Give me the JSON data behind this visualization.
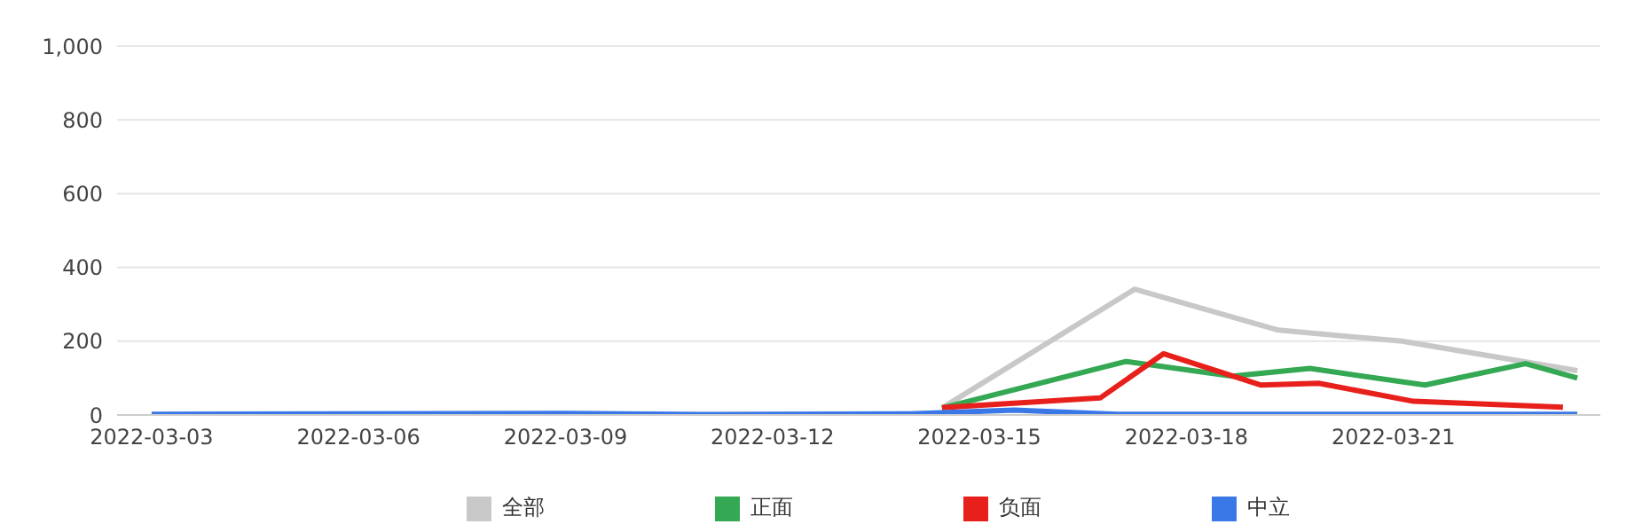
{
  "chart_data": {
    "type": "line",
    "xlim": [
      "2022-03-02T12:00",
      "2022-03-24T00:00"
    ],
    "xticks": [
      "2022-03-03",
      "2022-03-06",
      "2022-03-09",
      "2022-03-12",
      "2022-03-15",
      "2022-03-18",
      "2022-03-21"
    ],
    "ylim": [
      0,
      1000
    ],
    "yticks": [
      0,
      200,
      400,
      600,
      800,
      {
        "value": 1000,
        "label": "1,000"
      }
    ],
    "grid": "y",
    "legend": "bottom",
    "marker": "none",
    "line_style": "solid",
    "series": [
      {
        "name": "全部",
        "color": "#c8c8c8",
        "x": [
          "2022-03-14T11:00",
          "2022-03-17T06:00",
          "2022-03-19T08:00",
          "2022-03-21T03:00",
          "2022-03-23T16:00"
        ],
        "values": [
          19,
          341,
          230,
          200,
          120
        ]
      },
      {
        "name": "正面",
        "color": "#34a853",
        "x": [
          "2022-03-14T11:00",
          "2022-03-17T03:00",
          "2022-03-18T16:00",
          "2022-03-19T19:00",
          "2022-03-21T11:00",
          "2022-03-22T22:00",
          "2022-03-23T16:00"
        ],
        "values": [
          19,
          145,
          105,
          126,
          81,
          139,
          100
        ]
      },
      {
        "name": "负面",
        "color": "#e8201c",
        "x": [
          "2022-03-14T11:00",
          "2022-03-16T18:00",
          "2022-03-17T16:00",
          "2022-03-19T02:00",
          "2022-03-19T22:00",
          "2022-03-21T07:00",
          "2022-03-23T11:00"
        ],
        "values": [
          20,
          46,
          166,
          81,
          86,
          37,
          21
        ]
      },
      {
        "name": "中立",
        "color": "#3b78e7",
        "x": [
          "2022-03-03",
          "2022-03-09",
          "2022-03-11",
          "2022-03-14",
          "2022-03-15T12:00",
          "2022-03-17",
          "2022-03-23T16:00"
        ],
        "values": [
          2,
          4,
          1,
          3,
          13,
          2,
          2
        ]
      }
    ]
  }
}
